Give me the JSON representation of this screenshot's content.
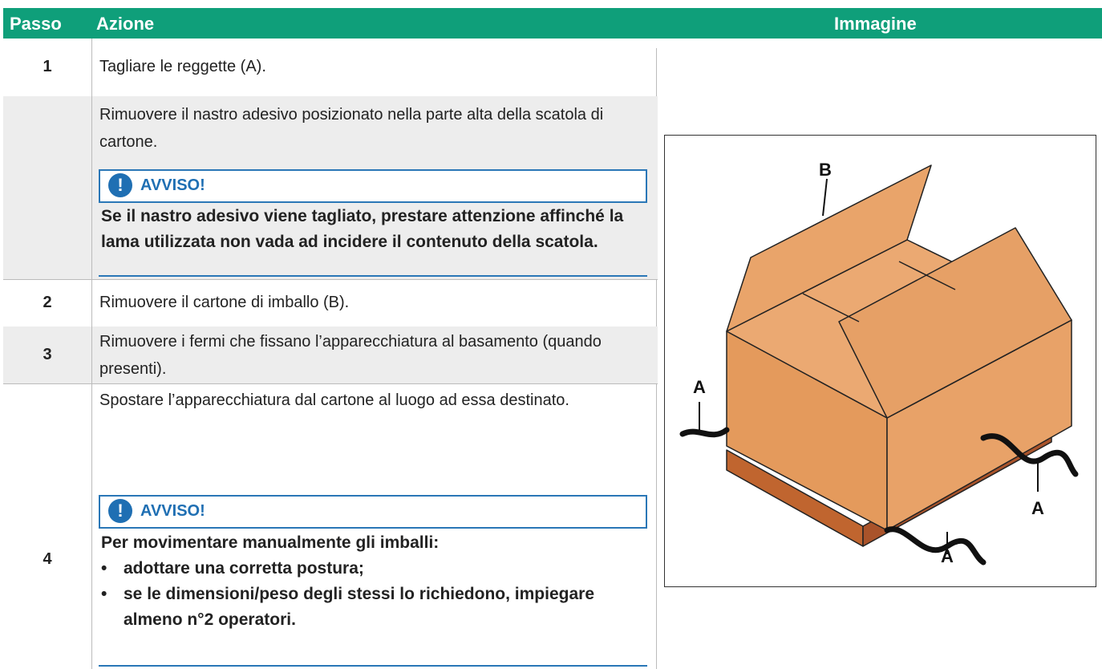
{
  "header": {
    "step": "Passo",
    "action": "Azione",
    "image": "Immagine"
  },
  "rows": [
    {
      "step": "1",
      "action": "Tagliare le reggette (A)."
    },
    {
      "action": "Rimuovere il nastro adesivo posizionato nella parte alta della scatola di cartone.",
      "notice": {
        "title": "AVVISO!",
        "text": "Se il nastro adesivo viene tagliato, prestare attenzione affinché la lama utilizzata non vada ad incidere il contenuto della scatola."
      }
    },
    {
      "step": "2",
      "action": "Rimuovere il cartone di imballo (B)."
    },
    {
      "step": "3",
      "action": "Rimuovere i fermi che fissano l’apparecchiatura al basamento (quando presenti)."
    },
    {
      "step": "4",
      "action": "Spostare l’apparecchiatura dal cartone al luogo ad essa destinato.",
      "notice": {
        "title": "AVVISO!",
        "text": "Per movimentare manualmente gli imballi:",
        "items": [
          "adottare una corretta postura;",
          "se le dimensioni/peso degli stessi lo richiedono, impiegare almeno n°2 operatori."
        ]
      }
    }
  ],
  "image": {
    "labels": [
      "B",
      "A",
      "A",
      "A"
    ]
  }
}
